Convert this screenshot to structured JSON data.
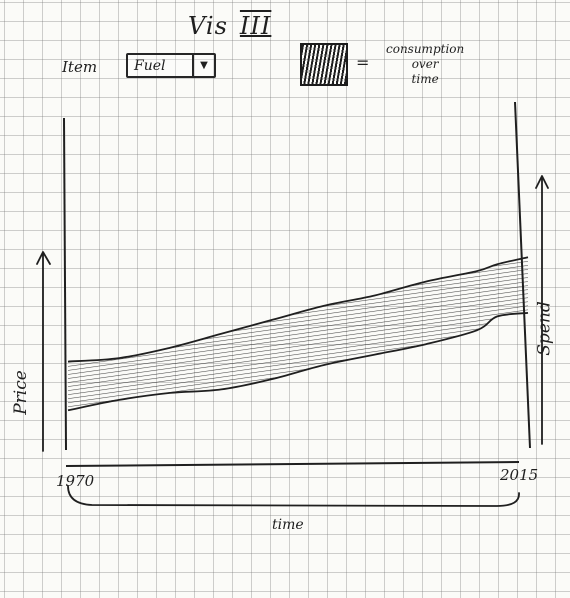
{
  "header": {
    "title": "Vis",
    "title_numeral": "III"
  },
  "controls": {
    "item_label": "Item",
    "item_value": "Fuel",
    "dropdown_icon": "triangle-down-icon"
  },
  "legend": {
    "equals": "=",
    "label": "consumption\nover\ntime"
  },
  "chart_data": {
    "type": "area",
    "xlabel": "time",
    "ylabel": "Price",
    "ylabel_right": "Spend",
    "x_start_label": "1970",
    "x_end_label": "2015",
    "x": [
      1970,
      1975,
      1980,
      1985,
      1990,
      1995,
      2000,
      2005,
      2010,
      2012,
      2015
    ],
    "series": [
      {
        "name": "consumption over time",
        "upper": [
          0.3,
          0.31,
          0.34,
          0.38,
          0.42,
          0.46,
          0.49,
          0.53,
          0.56,
          0.58,
          0.6
        ],
        "lower": [
          0.16,
          0.19,
          0.21,
          0.22,
          0.25,
          0.29,
          0.32,
          0.35,
          0.39,
          0.43,
          0.44
        ]
      }
    ],
    "colors": {
      "ink": "#1f1f1f",
      "grid": "#787878"
    }
  }
}
